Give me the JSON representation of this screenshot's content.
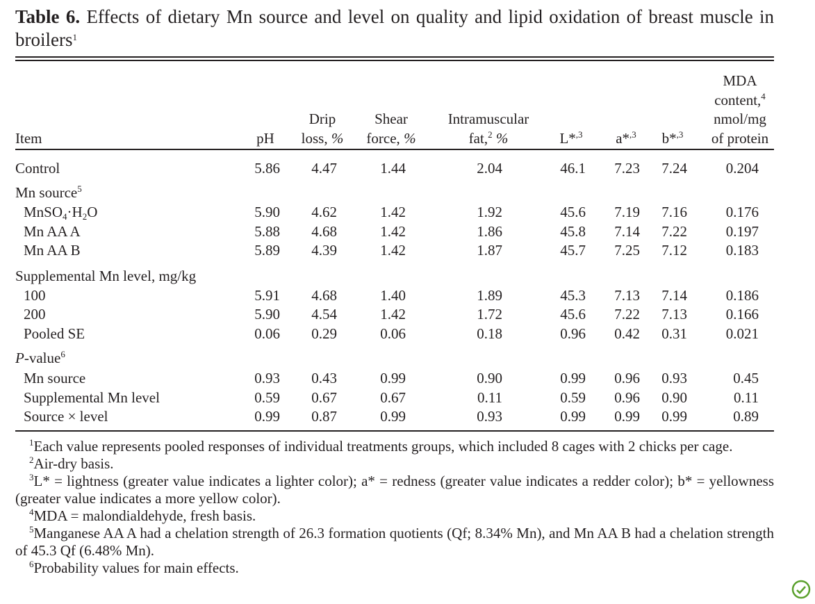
{
  "title": {
    "label": "Table 6.",
    "text": "Effects of dietary Mn source and level on quality and lipid oxidation of breast muscle in broilers",
    "sup": "1"
  },
  "table": {
    "header": [
      [
        [
          "Item"
        ]
      ],
      [
        [
          "pH"
        ]
      ],
      [
        [
          "Drip"
        ],
        [
          "loss,",
          {
            "text": " %",
            "style": "i"
          }
        ]
      ],
      [
        [
          "Shear"
        ],
        [
          "force,",
          {
            "text": " %",
            "style": "i"
          }
        ]
      ],
      [
        [
          "Intramuscular"
        ],
        [
          "fat,",
          {
            "text": "2",
            "style": "sup"
          },
          {
            "text": " %",
            "style": "i"
          }
        ]
      ],
      [
        [
          "L*",
          {
            "text": ",3",
            "style": "sup"
          }
        ]
      ],
      [
        [
          "a*",
          {
            "text": ",3",
            "style": "sup"
          }
        ]
      ],
      [
        [
          "b*",
          {
            "text": ",3",
            "style": "sup"
          }
        ]
      ],
      [
        [
          "MDA"
        ],
        [
          "content,",
          {
            "text": "4",
            "style": "sup"
          }
        ],
        [
          "nmol/mg"
        ],
        [
          "of protein"
        ]
      ]
    ],
    "rows": [
      {
        "item": [
          "Control"
        ],
        "values": [
          "5.86",
          "4.47",
          "1.44",
          "2.04",
          "46.1",
          "7.23",
          "7.24",
          "0.204"
        ]
      },
      {
        "item": [
          "Mn source",
          {
            "text": "5",
            "style": "sup"
          }
        ]
      },
      {
        "item": [
          "MnSO",
          {
            "text": "4",
            "style": "sub"
          },
          "·H",
          {
            "text": "2",
            "style": "sub"
          },
          "O"
        ],
        "values": [
          "5.90",
          "4.62",
          "1.42",
          "1.92",
          "45.6",
          "7.19",
          "7.16",
          "0.176"
        ]
      },
      {
        "item": [
          "Mn AA A"
        ],
        "values": [
          "5.88",
          "4.68",
          "1.42",
          "1.86",
          "45.8",
          "7.14",
          "7.22",
          "0.197"
        ]
      },
      {
        "item": [
          "Mn AA B"
        ],
        "values": [
          "5.89",
          "4.39",
          "1.42",
          "1.87",
          "45.7",
          "7.25",
          "7.12",
          "0.183"
        ]
      },
      {
        "item": [
          "Supplemental Mn level, mg/kg"
        ]
      },
      {
        "item": [
          "100"
        ],
        "values": [
          "5.91",
          "4.68",
          "1.40",
          "1.89",
          "45.3",
          "7.13",
          "7.14",
          "0.186"
        ]
      },
      {
        "item": [
          "200"
        ],
        "values": [
          "5.90",
          "4.54",
          "1.42",
          "1.72",
          "45.6",
          "7.22",
          "7.13",
          "0.166"
        ]
      },
      {
        "item": [
          "Pooled SE"
        ],
        "values": [
          "0.06",
          "0.29",
          "0.06",
          "0.18",
          "0.96",
          "0.42",
          "0.31",
          "0.021"
        ]
      },
      {
        "item": [
          {
            "text": "P",
            "style": "i"
          },
          "-value",
          {
            "text": "6",
            "style": "sup"
          }
        ]
      },
      {
        "item": [
          "Mn source"
        ],
        "values": [
          "0.93",
          "0.43",
          "0.99",
          "0.90",
          "0.99",
          "0.96",
          "0.93",
          "0.45"
        ]
      },
      {
        "item": [
          "Supplemental Mn level"
        ],
        "values": [
          "0.59",
          "0.67",
          "0.67",
          "0.11",
          "0.59",
          "0.96",
          "0.90",
          "0.11"
        ]
      },
      {
        "item": [
          "Source × level"
        ],
        "values": [
          "0.99",
          "0.87",
          "0.99",
          "0.93",
          "0.99",
          "0.99",
          "0.99",
          "0.89"
        ]
      }
    ]
  },
  "footnotes": [
    {
      "mark": "1",
      "text": "Each value represents pooled responses of individual treatments groups, which included 8 cages with 2 chicks per cage."
    },
    {
      "mark": "2",
      "text": "Air-dry basis."
    },
    {
      "mark": "3",
      "text": "L* = lightness (greater value indicates a lighter color); a* = redness (greater value indicates a redder color); b* = yellowness (greater value indicates a more yellow color)."
    },
    {
      "mark": "4",
      "text": "MDA = malondialdehyde, fresh basis."
    },
    {
      "mark": "5",
      "text": "Manganese AA A had a chelation strength of 26.3 formation quotients (Qf; 8.34% Mn), and Mn AA B had a chelation strength of 45.3 Qf (6.48% Mn)."
    },
    {
      "mark": "6",
      "text": "Probability values for main effects."
    }
  ]
}
